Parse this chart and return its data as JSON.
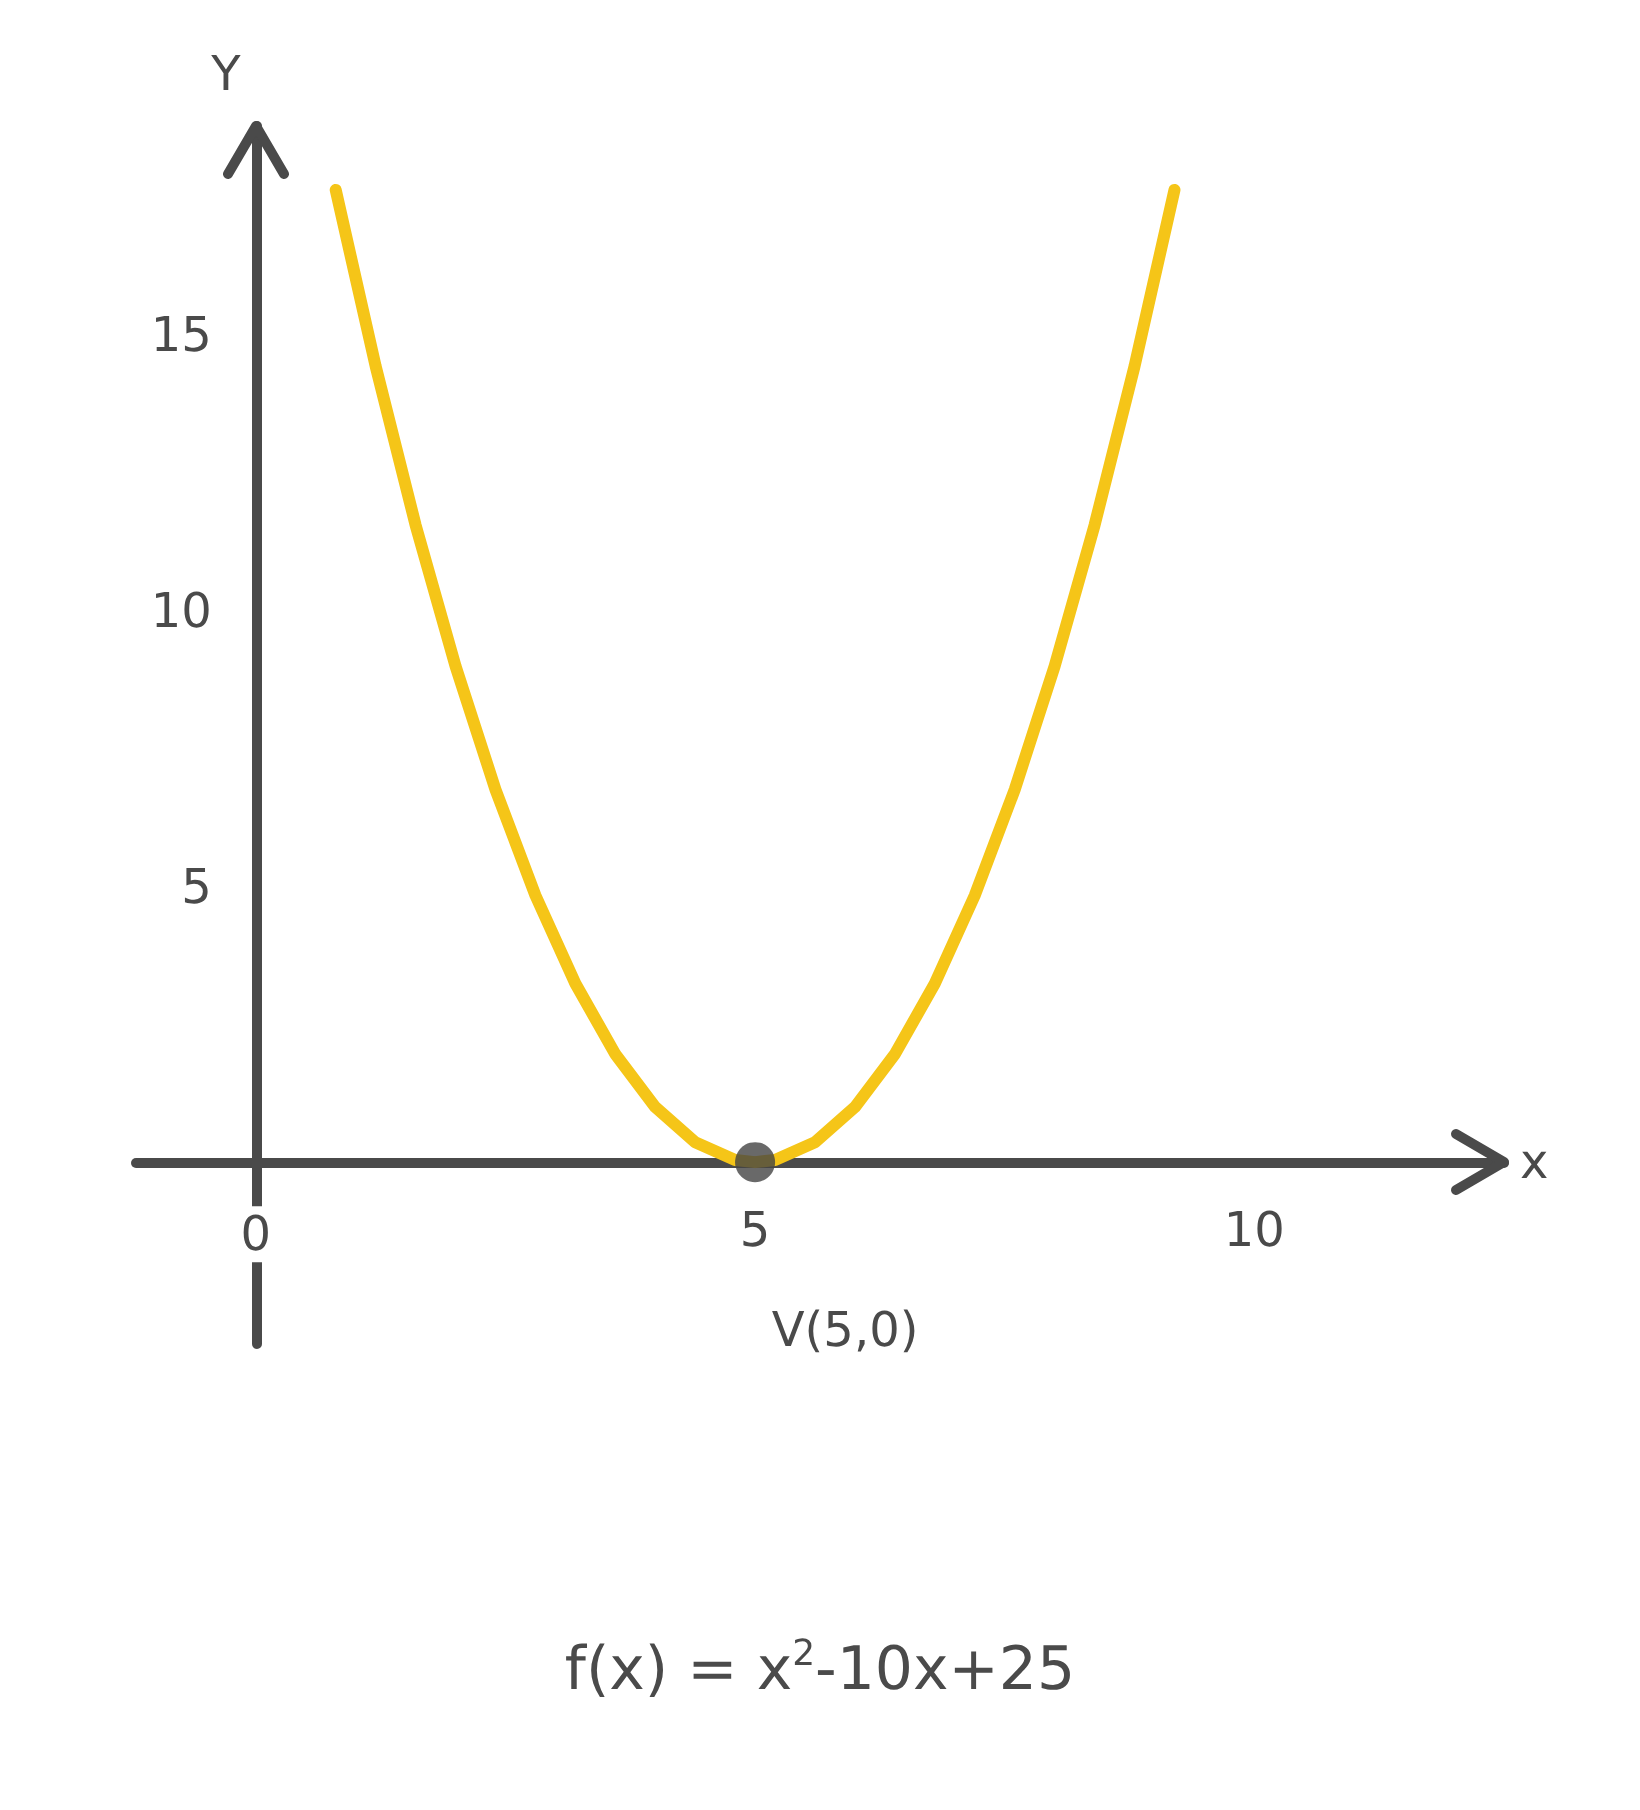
{
  "chart_data": {
    "type": "line",
    "xlabel": "x",
    "ylabel": "Y",
    "xlim": [
      -1.2,
      12.5
    ],
    "ylim": [
      -3.3,
      18.8
    ],
    "xticks": [
      0,
      5,
      10
    ],
    "yticks": [
      5,
      10,
      15
    ],
    "grid": false,
    "marker": "none",
    "line_style": "solid",
    "series": [
      {
        "color": "#f5c518",
        "x": [
          0.8,
          1.2,
          1.6,
          2,
          2.4,
          2.8,
          3.2,
          3.6,
          4,
          4.4,
          4.8,
          5,
          5.2,
          5.6,
          6,
          6.4,
          6.8,
          7.2,
          7.6,
          8,
          8.4,
          8.8,
          9.2
        ],
        "values": [
          17.64,
          14.44,
          11.56,
          9,
          6.76,
          4.84,
          3.24,
          1.96,
          1,
          0.36,
          0.04,
          0,
          0.04,
          0.36,
          1,
          1.96,
          3.24,
          4.84,
          6.76,
          9,
          11.56,
          14.44,
          17.64
        ]
      },
      {
        "type": "scatter",
        "color": "#444444",
        "marker": "circle",
        "x": [
          5
        ],
        "values": [
          0
        ]
      }
    ],
    "annotations": [
      {
        "text": "V(5,0)",
        "x": 5,
        "y": 0
      },
      "f(x) = x$^{2}$-10x+25"
    ]
  }
}
